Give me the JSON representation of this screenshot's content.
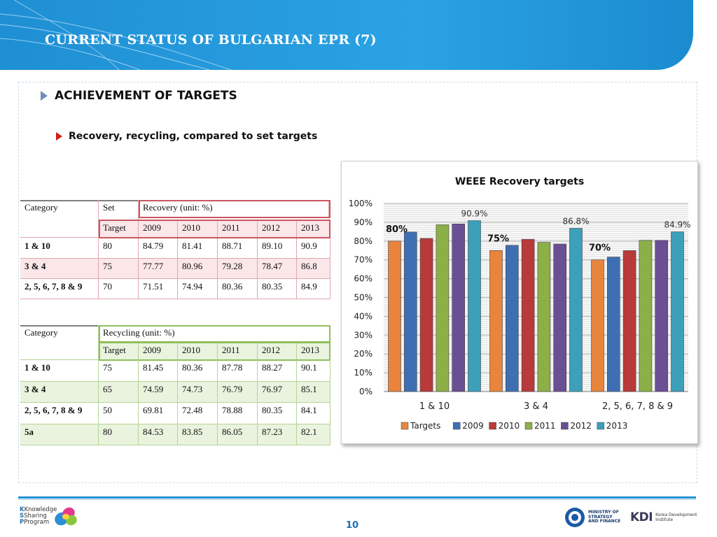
{
  "header": {
    "title": "CURRENT STATUS OF BULGARIAN EPR  (7)"
  },
  "section": {
    "heading": "ACHIEVEMENT OF TARGETS",
    "subheading": "Recovery, recycling, compared to set targets"
  },
  "recovery_table": {
    "col_category": "Category",
    "col_set": "Set",
    "col_group": "Recovery  (unit: %)",
    "target_label": "Target",
    "years": [
      "2009",
      "2010",
      "2011",
      "2012",
      "2013"
    ],
    "rows": [
      {
        "category": "1 & 10",
        "target": "80",
        "values": [
          "84.79",
          "81.41",
          "88.71",
          "89.10",
          "90.9"
        ]
      },
      {
        "category": "3 & 4",
        "target": "75",
        "values": [
          "77.77",
          "80.96",
          "79.28",
          "78.47",
          "86.8"
        ]
      },
      {
        "category": "2, 5, 6, 7, 8 & 9",
        "target": "70",
        "values": [
          "71.51",
          "74.94",
          "80.36",
          "80.35",
          "84.9"
        ]
      }
    ]
  },
  "recycling_table": {
    "col_category": "Category",
    "col_group": "Recycling (unit: %)",
    "target_label": "Target",
    "years": [
      "2009",
      "2010",
      "2011",
      "2012",
      "2013"
    ],
    "rows": [
      {
        "category": "1 & 10",
        "target": "75",
        "values": [
          "81.45",
          "80.36",
          "87.78",
          "88.27",
          "90.1"
        ]
      },
      {
        "category": "3 & 4",
        "target": "65",
        "values": [
          "74.59",
          "74.73",
          "76.79",
          "76.97",
          "85.1"
        ]
      },
      {
        "category": "2, 5, 6, 7, 8 & 9",
        "target": "50",
        "values": [
          "69.81",
          "72.48",
          "78.88",
          "80.35",
          "84.1"
        ]
      },
      {
        "category": "5a",
        "target": "80",
        "values": [
          "84.53",
          "83.85",
          "86.05",
          "87.23",
          "82.1"
        ]
      }
    ]
  },
  "chart_data": {
    "type": "bar",
    "title": "WEEE Recovery targets",
    "categories": [
      "1 & 10",
      "3 & 4",
      "2, 5, 6, 7, 8 & 9"
    ],
    "series": [
      {
        "name": "Targets",
        "values": [
          80,
          75,
          70
        ],
        "color": "#e8843c"
      },
      {
        "name": "2009",
        "values": [
          84.79,
          77.77,
          71.51
        ],
        "color": "#3f6fb3"
      },
      {
        "name": "2010",
        "values": [
          81.41,
          80.96,
          74.94
        ],
        "color": "#b83a3a"
      },
      {
        "name": "2011",
        "values": [
          88.71,
          79.28,
          80.36
        ],
        "color": "#8caf48"
      },
      {
        "name": "2012",
        "values": [
          89.1,
          78.47,
          80.35
        ],
        "color": "#6a4f95"
      },
      {
        "name": "2013",
        "values": [
          90.9,
          86.8,
          84.9
        ],
        "color": "#3ca0bb"
      }
    ],
    "data_labels": [
      {
        "text": "80%",
        "series": "Targets",
        "category": "1 & 10",
        "bold": true
      },
      {
        "text": "75%",
        "series": "Targets",
        "category": "3 & 4",
        "bold": true
      },
      {
        "text": "70%",
        "series": "Targets",
        "category": "2, 5, 6, 7, 8 & 9",
        "bold": true
      },
      {
        "text": "90.9%",
        "series": "2013",
        "category": "1 & 10",
        "bold": false
      },
      {
        "text": "86.8%",
        "series": "2013",
        "category": "3 & 4",
        "bold": false
      },
      {
        "text": "84.9%",
        "series": "2013",
        "category": "2, 5, 6, 7, 8 & 9",
        "bold": false
      }
    ],
    "ylim": [
      0,
      100
    ],
    "yticks": [
      "0%",
      "10%",
      "20%",
      "30%",
      "40%",
      "50%",
      "60%",
      "70%",
      "80%",
      "90%",
      "100%"
    ],
    "grid": true,
    "legend": "bottom"
  },
  "footer": {
    "program_lines": [
      "Knowledge",
      "Sharing",
      "Program"
    ],
    "page_number": "10",
    "ministry_lines": [
      "MINISTRY OF",
      "STRATEGY",
      "AND FINANCE"
    ],
    "kdi_mark": "KDI",
    "kdi_lines": [
      "Korea Development",
      "Institute"
    ]
  }
}
